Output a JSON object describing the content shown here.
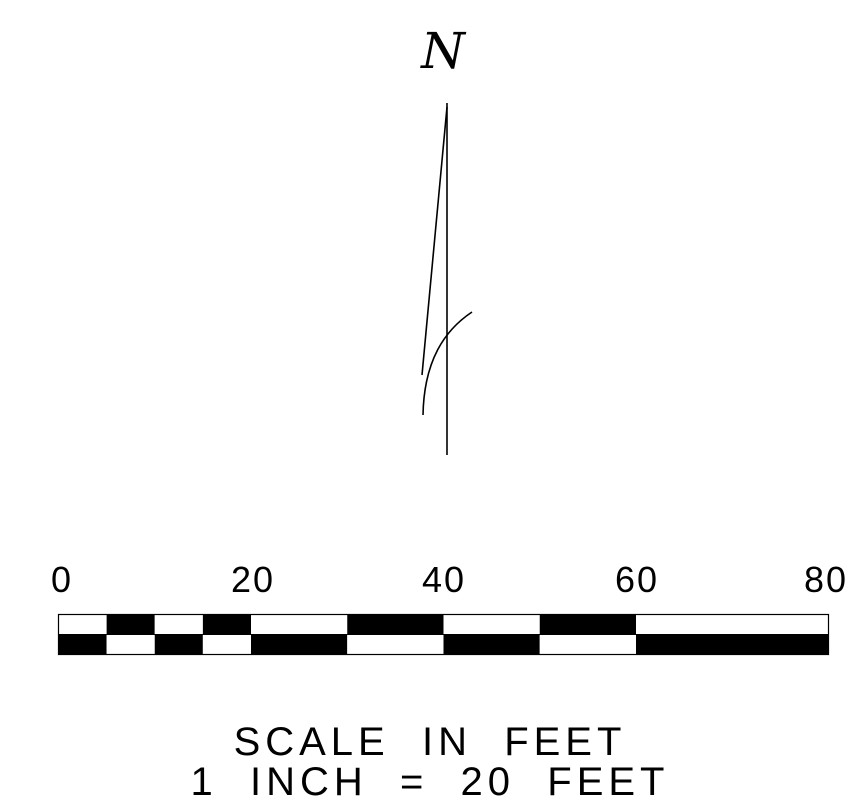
{
  "north_arrow": {
    "label": "N",
    "icon": "north-arrow-icon"
  },
  "scale_bar": {
    "tick_labels": [
      "0",
      "20",
      "40",
      "60",
      "80"
    ],
    "max_value": 80,
    "colors": {
      "ink": "#000000",
      "paper": "#ffffff"
    }
  },
  "caption": {
    "line1": "SCALE  IN  FEET",
    "line2": "1  INCH  =  20  FEET"
  }
}
